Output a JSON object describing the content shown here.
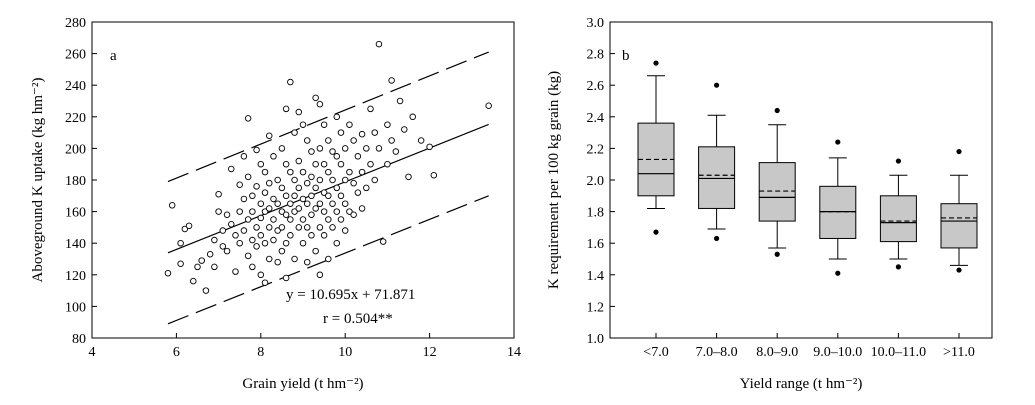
{
  "colors": {
    "box_fill": "#c8c8c8",
    "marker_stroke": "#000000"
  },
  "chart_data": [
    {
      "type": "scatter",
      "panel_label": "a",
      "xlabel": "Grain yield (t hm⁻²)",
      "ylabel": "Aboveground K uptake (kg hm⁻²)",
      "xlim": [
        4,
        14
      ],
      "ylim": [
        80,
        280
      ],
      "xticks": [
        "4",
        "6",
        "8",
        "10",
        "12",
        "14"
      ],
      "yticks": [
        "80",
        "100",
        "120",
        "140",
        "160",
        "180",
        "200",
        "220",
        "240",
        "260",
        "280"
      ],
      "equation": "y = 10.695x + 71.871",
      "correlation": "r = 0.504**",
      "regression": {
        "slope": 10.695,
        "intercept": 71.871,
        "x_range": [
          5.8,
          13.4
        ]
      },
      "prediction_band": {
        "upper": [
          [
            5.8,
            179
          ],
          [
            13.4,
            261
          ]
        ],
        "lower": [
          [
            5.8,
            89
          ],
          [
            13.4,
            170
          ]
        ]
      },
      "points": [
        [
          5.8,
          121
        ],
        [
          5.9,
          164
        ],
        [
          6.1,
          140
        ],
        [
          6.1,
          127
        ],
        [
          6.2,
          149
        ],
        [
          6.3,
          151
        ],
        [
          6.4,
          116
        ],
        [
          6.5,
          125
        ],
        [
          6.6,
          129
        ],
        [
          6.7,
          110
        ],
        [
          6.8,
          133
        ],
        [
          6.9,
          142
        ],
        [
          6.9,
          125
        ],
        [
          7.0,
          160
        ],
        [
          7.0,
          171
        ],
        [
          7.1,
          148
        ],
        [
          7.1,
          138
        ],
        [
          7.2,
          158
        ],
        [
          7.2,
          135
        ],
        [
          7.3,
          187
        ],
        [
          7.3,
          152
        ],
        [
          7.4,
          122
        ],
        [
          7.4,
          145
        ],
        [
          7.5,
          177
        ],
        [
          7.5,
          160
        ],
        [
          7.5,
          140
        ],
        [
          7.6,
          195
        ],
        [
          7.6,
          168
        ],
        [
          7.6,
          148
        ],
        [
          7.7,
          219
        ],
        [
          7.7,
          182
        ],
        [
          7.7,
          155
        ],
        [
          7.7,
          132
        ],
        [
          7.8,
          170
        ],
        [
          7.8,
          160
        ],
        [
          7.8,
          142
        ],
        [
          7.8,
          125
        ],
        [
          7.9,
          199
        ],
        [
          7.9,
          176
        ],
        [
          7.9,
          150
        ],
        [
          7.9,
          138
        ],
        [
          8.0,
          190
        ],
        [
          8.0,
          165
        ],
        [
          8.0,
          156
        ],
        [
          8.0,
          145
        ],
        [
          8.0,
          120
        ],
        [
          8.1,
          185
        ],
        [
          8.1,
          172
        ],
        [
          8.1,
          160
        ],
        [
          8.1,
          140
        ],
        [
          8.1,
          115
        ],
        [
          8.2,
          208
        ],
        [
          8.2,
          178
        ],
        [
          8.2,
          162
        ],
        [
          8.2,
          150
        ],
        [
          8.2,
          130
        ],
        [
          8.3,
          195
        ],
        [
          8.3,
          168
        ],
        [
          8.3,
          155
        ],
        [
          8.3,
          142
        ],
        [
          8.4,
          180
        ],
        [
          8.4,
          165
        ],
        [
          8.4,
          148
        ],
        [
          8.4,
          128
        ],
        [
          8.5,
          200
        ],
        [
          8.5,
          175
        ],
        [
          8.5,
          160
        ],
        [
          8.5,
          150
        ],
        [
          8.5,
          135
        ],
        [
          8.6,
          225
        ],
        [
          8.6,
          190
        ],
        [
          8.6,
          170
        ],
        [
          8.6,
          158
        ],
        [
          8.6,
          140
        ],
        [
          8.6,
          118
        ],
        [
          8.7,
          242
        ],
        [
          8.7,
          185
        ],
        [
          8.7,
          165
        ],
        [
          8.7,
          155
        ],
        [
          8.7,
          145
        ],
        [
          8.8,
          210
        ],
        [
          8.8,
          180
        ],
        [
          8.8,
          170
        ],
        [
          8.8,
          160
        ],
        [
          8.8,
          130
        ],
        [
          8.9,
          223
        ],
        [
          8.9,
          192
        ],
        [
          8.9,
          175
        ],
        [
          8.9,
          162
        ],
        [
          8.9,
          150
        ],
        [
          9.0,
          215
        ],
        [
          9.0,
          185
        ],
        [
          9.0,
          168
        ],
        [
          9.0,
          155
        ],
        [
          9.0,
          140
        ],
        [
          9.1,
          205
        ],
        [
          9.1,
          178
        ],
        [
          9.1,
          165
        ],
        [
          9.1,
          150
        ],
        [
          9.1,
          128
        ],
        [
          9.2,
          198
        ],
        [
          9.2,
          182
        ],
        [
          9.2,
          170
        ],
        [
          9.2,
          158
        ],
        [
          9.2,
          145
        ],
        [
          9.3,
          232
        ],
        [
          9.3,
          190
        ],
        [
          9.3,
          175
        ],
        [
          9.3,
          162
        ],
        [
          9.3,
          135
        ],
        [
          9.4,
          228
        ],
        [
          9.4,
          200
        ],
        [
          9.4,
          180
        ],
        [
          9.4,
          165
        ],
        [
          9.4,
          150
        ],
        [
          9.4,
          120
        ],
        [
          9.5,
          215
        ],
        [
          9.5,
          190
        ],
        [
          9.5,
          172
        ],
        [
          9.5,
          160
        ],
        [
          9.5,
          145
        ],
        [
          9.6,
          205
        ],
        [
          9.6,
          185
        ],
        [
          9.6,
          170
        ],
        [
          9.6,
          155
        ],
        [
          9.6,
          130
        ],
        [
          9.7,
          198
        ],
        [
          9.7,
          180
        ],
        [
          9.7,
          165
        ],
        [
          9.7,
          150
        ],
        [
          9.8,
          220
        ],
        [
          9.8,
          195
        ],
        [
          9.8,
          175
        ],
        [
          9.8,
          160
        ],
        [
          9.8,
          140
        ],
        [
          9.9,
          210
        ],
        [
          9.9,
          190
        ],
        [
          9.9,
          170
        ],
        [
          9.9,
          155
        ],
        [
          10.0,
          200
        ],
        [
          10.0,
          180
        ],
        [
          10.0,
          165
        ],
        [
          10.0,
          148
        ],
        [
          10.1,
          215
        ],
        [
          10.1,
          185
        ],
        [
          10.1,
          160
        ],
        [
          10.2,
          205
        ],
        [
          10.2,
          178
        ],
        [
          10.2,
          158
        ],
        [
          10.3,
          195
        ],
        [
          10.3,
          172
        ],
        [
          10.4,
          209
        ],
        [
          10.4,
          185
        ],
        [
          10.4,
          162
        ],
        [
          10.5,
          200
        ],
        [
          10.5,
          175
        ],
        [
          10.6,
          225
        ],
        [
          10.6,
          190
        ],
        [
          10.7,
          210
        ],
        [
          10.7,
          180
        ],
        [
          10.8,
          266
        ],
        [
          10.8,
          200
        ],
        [
          10.9,
          141
        ],
        [
          11.0,
          215
        ],
        [
          11.0,
          190
        ],
        [
          11.1,
          243
        ],
        [
          11.1,
          205
        ],
        [
          11.2,
          198
        ],
        [
          11.3,
          230
        ],
        [
          11.4,
          212
        ],
        [
          11.5,
          182
        ],
        [
          11.6,
          220
        ],
        [
          11.8,
          205
        ],
        [
          12.0,
          201
        ],
        [
          12.1,
          183
        ],
        [
          13.4,
          227
        ]
      ]
    },
    {
      "type": "box",
      "panel_label": "b",
      "xlabel": "Yield range (t hm⁻²)",
      "ylabel": "K requirement per 100 kg grain (kg)",
      "ylim": [
        1.0,
        3.0
      ],
      "yticks": [
        "1.0",
        "1.2",
        "1.4",
        "1.6",
        "1.8",
        "2.0",
        "2.2",
        "2.4",
        "2.6",
        "2.8",
        "3.0"
      ],
      "categories": [
        "<7.0",
        "7.0–8.0",
        "8.0–9.0",
        "9.0–10.0",
        "10.0–11.0",
        ">11.0"
      ],
      "boxes": [
        {
          "q1": 1.9,
          "median": 2.04,
          "mean": 2.13,
          "q3": 2.36,
          "whisker_low": 1.82,
          "whisker_high": 2.66,
          "outliers": [
            1.67,
            2.74
          ]
        },
        {
          "q1": 1.82,
          "median": 2.01,
          "mean": 2.03,
          "q3": 2.21,
          "whisker_low": 1.69,
          "whisker_high": 2.41,
          "outliers": [
            1.63,
            2.6
          ]
        },
        {
          "q1": 1.74,
          "median": 1.89,
          "mean": 1.93,
          "q3": 2.11,
          "whisker_low": 1.57,
          "whisker_high": 2.35,
          "outliers": [
            1.53,
            2.44
          ]
        },
        {
          "q1": 1.63,
          "median": 1.8,
          "mean": 1.8,
          "q3": 1.96,
          "whisker_low": 1.5,
          "whisker_high": 2.14,
          "outliers": [
            1.41,
            2.24
          ]
        },
        {
          "q1": 1.61,
          "median": 1.73,
          "mean": 1.74,
          "q3": 1.9,
          "whisker_low": 1.5,
          "whisker_high": 2.03,
          "outliers": [
            1.45,
            2.12
          ]
        },
        {
          "q1": 1.57,
          "median": 1.74,
          "mean": 1.76,
          "q3": 1.85,
          "whisker_low": 1.46,
          "whisker_high": 2.03,
          "outliers": [
            1.43,
            2.18
          ]
        }
      ]
    }
  ]
}
